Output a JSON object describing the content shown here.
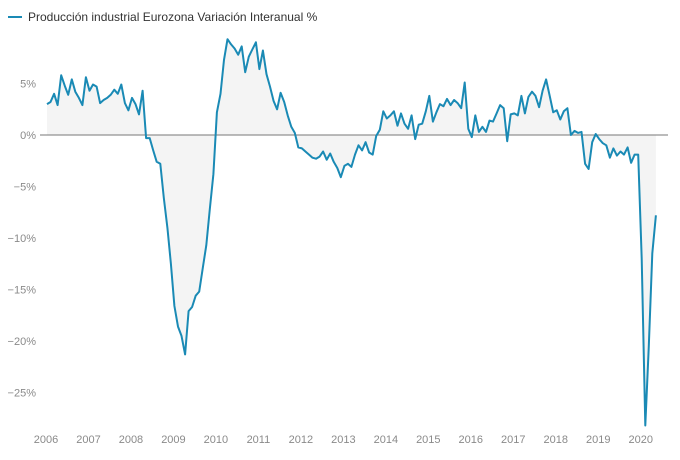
{
  "chart_data": {
    "type": "area",
    "title": "",
    "legend": [
      {
        "label": "Producción industrial Eurozona Variación Interanual %",
        "color": "#1a8ab5"
      }
    ],
    "legend_position": "top-left",
    "xlabel": "",
    "ylabel": "",
    "x_start": "2006-01",
    "x_frequency": "monthly",
    "x_ticks": [
      "2006",
      "2007",
      "2008",
      "2009",
      "2010",
      "2011",
      "2012",
      "2013",
      "2014",
      "2015",
      "2016",
      "2017",
      "2018",
      "2019",
      "2020"
    ],
    "y_ticks": [
      5,
      0,
      -5,
      -10,
      -15,
      -20,
      -25
    ],
    "y_tick_labels": [
      "5%",
      "0%",
      "−5%",
      "−10%",
      "−15%",
      "−20%",
      "−25%"
    ],
    "ylim": [
      -28.5,
      9.5
    ],
    "grid": false,
    "zero_line": true,
    "series": [
      {
        "name": "Producción industrial Eurozona Variación Interanual %",
        "color": "#1a8ab5",
        "fill": "#f4f4f4",
        "values": [
          3.0,
          3.2,
          4.0,
          2.9,
          5.8,
          4.8,
          3.9,
          5.4,
          4.2,
          3.6,
          2.9,
          5.6,
          4.3,
          4.9,
          4.7,
          3.1,
          3.4,
          3.6,
          3.9,
          4.4,
          4.0,
          4.9,
          3.1,
          2.4,
          3.6,
          3.0,
          2.0,
          4.3,
          -0.3,
          -0.3,
          -1.5,
          -2.6,
          -2.8,
          -6.1,
          -9.0,
          -12.5,
          -16.6,
          -18.6,
          -19.5,
          -21.3,
          -17.1,
          -16.7,
          -15.6,
          -15.2,
          -12.9,
          -10.7,
          -7.2,
          -3.8,
          2.2,
          4.0,
          7.3,
          9.3,
          8.8,
          8.4,
          7.8,
          8.6,
          6.1,
          7.6,
          8.3,
          9.0,
          6.4,
          8.2,
          5.9,
          4.7,
          3.3,
          2.5,
          4.1,
          3.2,
          1.9,
          0.8,
          0.2,
          -1.2,
          -1.3,
          -1.6,
          -1.9,
          -2.2,
          -2.3,
          -2.1,
          -1.6,
          -2.4,
          -1.8,
          -2.6,
          -3.2,
          -4.1,
          -3.0,
          -2.8,
          -3.1,
          -1.9,
          -1.0,
          -1.5,
          -0.7,
          -1.7,
          -1.9,
          -0.1,
          0.5,
          2.3,
          1.6,
          1.9,
          2.3,
          0.9,
          2.1,
          1.1,
          0.6,
          1.9,
          -0.4,
          1.0,
          1.1,
          2.3,
          3.8,
          1.3,
          2.2,
          3.0,
          2.8,
          3.5,
          2.9,
          3.4,
          3.1,
          2.6,
          5.1,
          0.6,
          -0.2,
          1.9,
          0.3,
          0.8,
          0.3,
          1.4,
          1.3,
          2.1,
          2.9,
          2.6,
          -0.6,
          2.0,
          2.1,
          1.9,
          3.8,
          2.1,
          3.7,
          4.2,
          3.8,
          2.7,
          4.3,
          5.4,
          3.8,
          2.2,
          2.4,
          1.5,
          2.3,
          2.6,
          0.0,
          0.4,
          0.2,
          0.3,
          -2.8,
          -3.3,
          -0.7,
          0.1,
          -0.4,
          -0.8,
          -1.0,
          -2.2,
          -1.3,
          -2.0,
          -1.6,
          -1.9,
          -1.2,
          -2.7,
          -1.9,
          -1.9,
          -12.0,
          -28.2,
          -20.5,
          -11.5,
          -7.8
        ]
      }
    ]
  }
}
